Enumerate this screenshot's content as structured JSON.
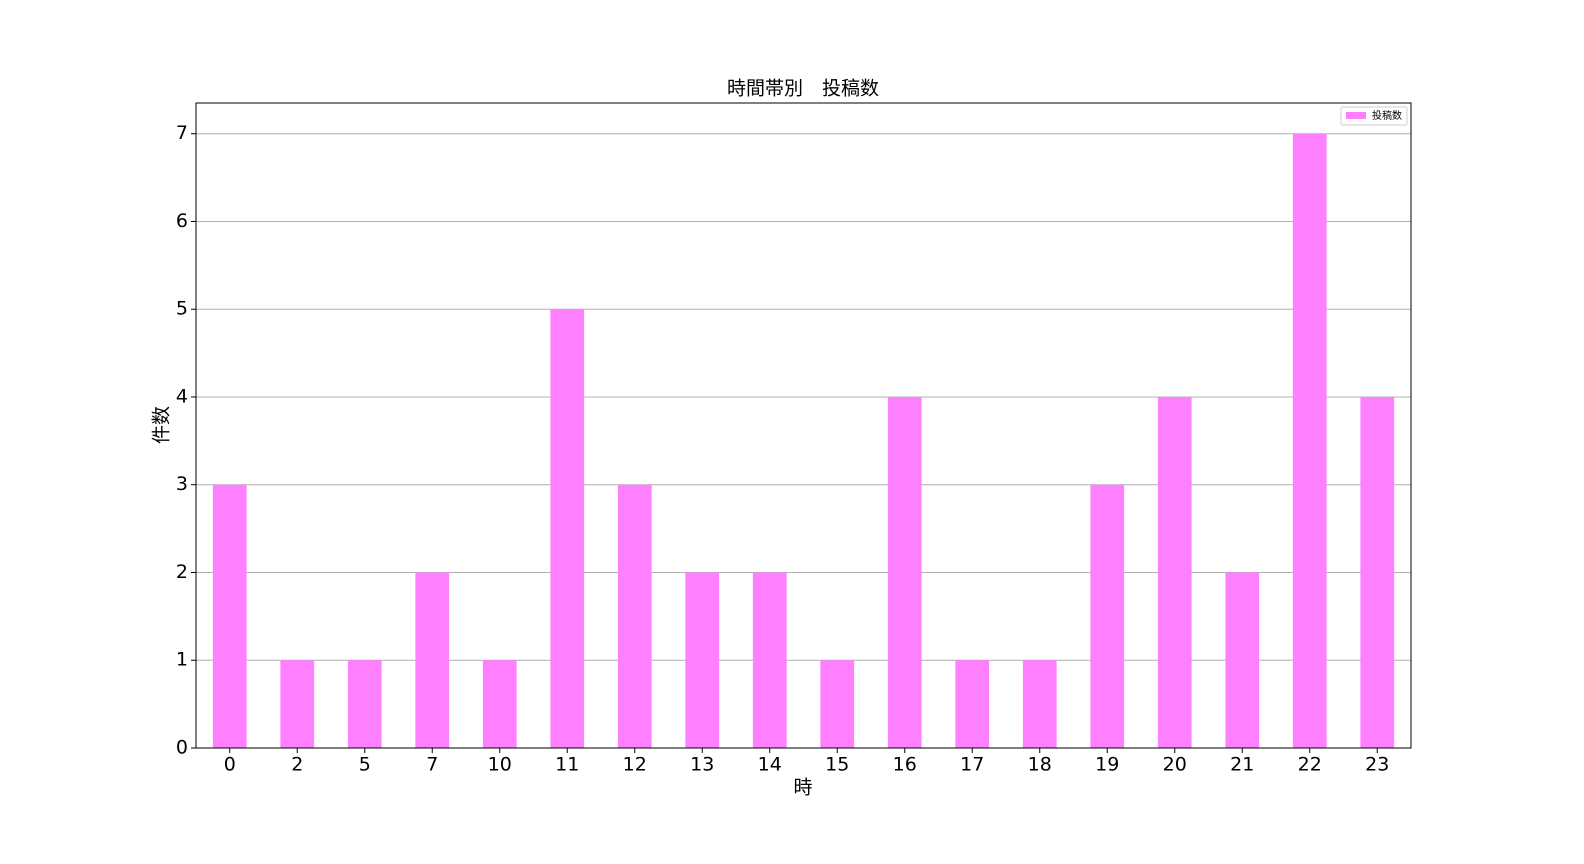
{
  "chart_data": {
    "type": "bar",
    "title": "時間帯別　投稿数",
    "x_label": "時",
    "y_label": "件数",
    "categories": [
      "0",
      "2",
      "5",
      "7",
      "10",
      "11",
      "12",
      "13",
      "14",
      "15",
      "16",
      "17",
      "18",
      "19",
      "20",
      "21",
      "22",
      "23"
    ],
    "series": [
      {
        "name": "投稿数",
        "color": "#ff80ff",
        "values": [
          3,
          1,
          1,
          2,
          1,
          5,
          3,
          2,
          2,
          1,
          4,
          1,
          1,
          3,
          4,
          2,
          7,
          4
        ]
      }
    ],
    "ylim": [
      0,
      7.35
    ],
    "yticks": [
      0,
      1,
      2,
      3,
      4,
      5,
      6,
      7
    ],
    "grid": true,
    "legend": "upper-right"
  }
}
